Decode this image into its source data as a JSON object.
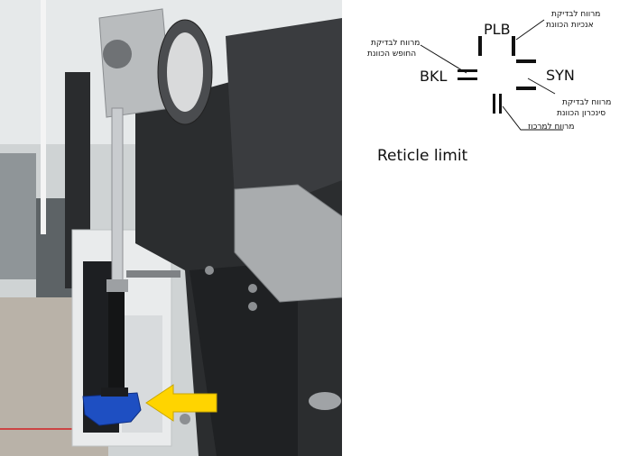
{
  "photo": {
    "description_arrow_color": "#FFD400",
    "knob_color": "#1E4FC2"
  },
  "reticle": {
    "labels": {
      "plb": "PLB",
      "bkl": "BKL",
      "syn": "SYN"
    },
    "callouts": {
      "plb_line1": "מרווח לבדיקת",
      "plb_line2": "אנכיות הכוונת",
      "bkl_line1": "מרווח לבדיקת",
      "bkl_line2": "החופש הכוונת",
      "syn_line1": "מרווח לבדיקת",
      "syn_line2": "סינכרון הכוונת",
      "center": "מרווח למרכוז"
    },
    "title": "Reticle limit"
  }
}
